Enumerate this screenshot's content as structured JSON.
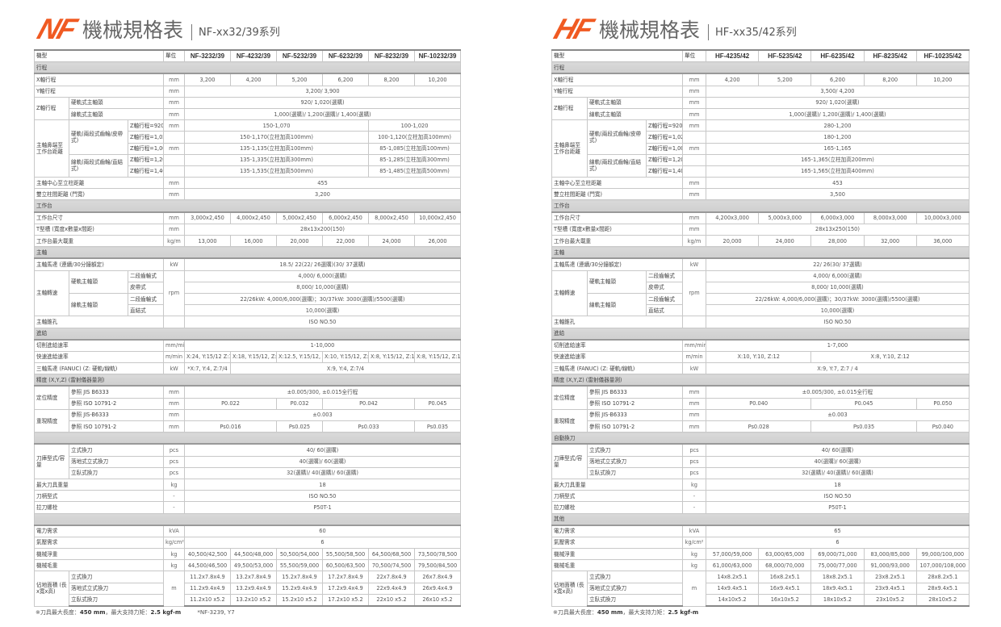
{
  "nf": {
    "logo": {
      "text": "NF",
      "color": "#f05a22"
    },
    "title": "機械規格表",
    "subtitle": "NF-xx32/39系列",
    "header": {
      "model": "機型",
      "unit": "單位",
      "models": [
        "NF-3232/39",
        "NF-4232/39",
        "NF-5232/39",
        "NF-6232/39",
        "NF-8232/39",
        "NF-10232/39"
      ]
    },
    "rows": [
      {
        "section": "行程"
      },
      {
        "label": "X軸行程",
        "unit": "mm",
        "values": [
          "3,200",
          "4,200",
          "5,200",
          "6,200",
          "8,200",
          "10,200"
        ]
      },
      {
        "label": "Y軸行程",
        "unit": "mm",
        "values": [
          "3,200/ 3,900"
        ]
      },
      {
        "group": "Z軸行程",
        "items": [
          {
            "label": "硬軌式主軸頭",
            "unit": "mm",
            "values": [
              "920/ 1,020(選購)"
            ]
          },
          {
            "label": "線軌式主軸頭",
            "unit": "mm",
            "values": [
              "1,000(選購)/ 1,200(選購)/ 1,400(選購)"
            ]
          }
        ]
      },
      {
        "group": "主軸鼻端至工作台距離",
        "items": [
          {
            "sub": "硬軌(兩段式齒輪/皮帶式)",
            "items": [
              {
                "label": "Z軸行程=920",
                "unit": "mm",
                "values": [
                  "150-1,070",
                  "100-1,020"
                ]
              },
              {
                "label": "Z軸行程=1,020",
                "unit": "",
                "values": [
                  "150-1,170(立柱加高100mm)",
                  "100-1,120(立柱加高100mm)"
                ]
              },
              {
                "label": "Z軸行程=1,000",
                "unit": "mm",
                "values": [
                  "135-1,135(立柱加高100mm)",
                  "85-1,085(立柱加高100mm)"
                ]
              }
            ]
          },
          {
            "sub": "線軌(兩段式齒輪/直結式)",
            "items": [
              {
                "label": "Z軸行程=1,200",
                "unit": "",
                "values": [
                  "135-1,335(立柱加高300mm)",
                  "85-1,285(立柱加高300mm)"
                ]
              },
              {
                "label": "Z軸行程=1,400",
                "unit": "",
                "values": [
                  "135-1,535(立柱加高500mm)",
                  "85-1,485(立柱加高500mm)"
                ]
              }
            ]
          }
        ]
      },
      {
        "label": "主軸中心至立柱距離",
        "unit": "mm",
        "values": [
          "455"
        ]
      },
      {
        "label": "雙立柱間距離 (門寬)",
        "unit": "mm",
        "values": [
          "3,200"
        ]
      },
      {
        "section": "工作台"
      },
      {
        "label": "工作台尺寸",
        "unit": "mm",
        "values": [
          "3,000x2,450",
          "4,000x2,450",
          "5,000x2,450",
          "6,000x2,450",
          "8,000x2,450",
          "10,000x2,450"
        ]
      },
      {
        "label": "T型槽 (寬度x數量x間距)",
        "unit": "mm",
        "values": [
          "28x13x200(150)"
        ]
      },
      {
        "label": "工作台最大載重",
        "unit": "kg/m",
        "values": [
          "13,000",
          "16,000",
          "20,000",
          "22,000",
          "24,000",
          "26,000"
        ]
      },
      {
        "section": "主軸"
      },
      {
        "label": "主軸馬達 (連續/30分鐘額定)",
        "unit": "kW",
        "values": [
          "18.5/ 22(22/ 26選購)(30/ 37選購)"
        ]
      },
      {
        "group": "主軸轉速",
        "unit": "rpm",
        "items": [
          {
            "sub": "硬軌主軸頭",
            "items": [
              {
                "label": "二段齒輪式",
                "values": [
                  "4,000/ 6,000(選購)"
                ]
              },
              {
                "label": "皮帶式",
                "values": [
                  "8,000/ 10,000(選購)"
                ]
              }
            ]
          },
          {
            "sub": "線軌主軸頭",
            "items": [
              {
                "label": "二段齒輪式",
                "values": [
                  "22/26kW: 4,000/6,000(選購)；30/37kW: 3000(選購)/5500(選購)"
                ]
              },
              {
                "label": "直結式",
                "values": [
                  "10,000(選購)"
                ]
              }
            ]
          }
        ]
      },
      {
        "label": "主軸錐孔",
        "unit": "",
        "values": [
          "ISO NO.50"
        ]
      },
      {
        "section": "進給"
      },
      {
        "label": "切削進給速率",
        "unit": "mm/min",
        "values": [
          "1-10,000"
        ]
      },
      {
        "label": "快速進給速率",
        "unit": "m/min",
        "values": [
          "X:24, Y:15/12 Z:15",
          "X:18, Y:15/12, Z:15",
          "X:12.5, Y:15/12, Z:15",
          "X:10, Y:15/12, Z:15",
          "X:8, Y:15/12, Z:15",
          "X:8, Y:15/12, Z:15"
        ]
      },
      {
        "label": "三軸馬達 (FANUC) (Z: 硬軌/線軌)",
        "unit": "kW",
        "values": [
          "*X:7, Y:4, Z:7/4",
          "X:9, Y:4, Z:7/4"
        ]
      },
      {
        "section": "精度 (X,Y,Z) (雷射儀器量測)"
      },
      {
        "group": "定位精度",
        "items": [
          {
            "label": "參照  JIS B6333",
            "unit": "mm",
            "values": [
              "±0.005/300, ±0.015全行程"
            ]
          },
          {
            "label": "參照  ISO 10791-2",
            "unit": "mm",
            "values": [
              "P0.022",
              "P0.032",
              "P0.042",
              "P0.045"
            ]
          }
        ]
      },
      {
        "group": "重現精度",
        "items": [
          {
            "label": "參照  JIS-B6333",
            "unit": "mm",
            "values": [
              "±0.003"
            ]
          },
          {
            "label": "參照  ISO 10791-2",
            "unit": "mm",
            "values": [
              "Ps0.016",
              "Ps0.025",
              "Ps0.033",
              "Ps0.035"
            ]
          }
        ]
      },
      {
        "section": ""
      },
      {
        "group": "刀庫型式/容量",
        "items": [
          {
            "label": "立式換刀",
            "unit": "pcs",
            "values": [
              "40/ 60(選購)"
            ]
          },
          {
            "label": "落地式立式換刀",
            "unit": "pcs",
            "values": [
              "40(選購)/ 60(選購)"
            ]
          },
          {
            "label": "立臥式換刀",
            "unit": "pcs",
            "values": [
              "32(選購)/ 40(選購)/ 60(選購)"
            ]
          }
        ]
      },
      {
        "label": "最大刀具重量",
        "unit": "kg",
        "values": [
          "18"
        ]
      },
      {
        "label": "刀柄型式",
        "unit": "-",
        "values": [
          "ISO NO.50"
        ]
      },
      {
        "label": "拉刀螺栓",
        "unit": "-",
        "values": [
          "P50T-1"
        ]
      },
      {
        "section": ""
      },
      {
        "label": "電力需求",
        "unit": "kVA",
        "values": [
          "60"
        ]
      },
      {
        "label": "氣壓需求",
        "unit": "kg/cm²",
        "values": [
          "6"
        ]
      },
      {
        "label": "機械淨重",
        "unit": "kg",
        "values": [
          "40,500/42,500",
          "44,500/48,000",
          "50,500/54,000",
          "55,500/58,500",
          "64,500/68,500",
          "73,500/78,500"
        ]
      },
      {
        "label": "機械毛重",
        "unit": "kg",
        "values": [
          "44,500/46,500",
          "49,500/53,000",
          "55,500/59,000",
          "60,500/63,500",
          "70,500/74,500",
          "79,500/84,500"
        ]
      },
      {
        "group": "佔地面積 (長x寬x高)",
        "unit": "m",
        "items": [
          {
            "label": "立式換刀",
            "values": [
              "11.2x7.8x4.9",
              "13.2x7.8x4.9",
              "15.2x7.8x4.9",
              "17.2x7.8x4.9",
              "22x7.8x4.9",
              "26x7.8x4.9"
            ]
          },
          {
            "label": "落地式立式換刀",
            "values": [
              "11.2x9.4x4.9",
              "13.2x9.4x4.9",
              "15.2x9.4x4.9",
              "17.2x9.4x4.9",
              "22x9.4x4.9",
              "26x9.4x4.9"
            ]
          },
          {
            "label": "立臥式換刀",
            "values": [
              "11.2x10 x5.2",
              "13.2x10 x5.2",
              "15.2x10 x5.2",
              "17.2x10 x5.2",
              "22x10 x5.2",
              "26x10 x5.2"
            ]
          }
        ]
      }
    ],
    "footer": {
      "p1": "※刀具最大長度：",
      "len": "450 mm",
      "p2": "，最大支持力矩：",
      "torque": "2.5 kgf-m",
      "note": "*NF-3239, Y7"
    }
  },
  "hf": {
    "logo": {
      "text": "HF",
      "color": "#f05a22"
    },
    "title": "機械規格表",
    "subtitle": "HF-xx35/42系列",
    "header": {
      "model": "機型",
      "unit": "單位",
      "models": [
        "HF-4235/42",
        "HF-5235/42",
        "HF-6235/42",
        "HF-8235/42",
        "HF-10235/42"
      ]
    },
    "rows": [
      {
        "section": "行程"
      },
      {
        "label": "X軸行程",
        "unit": "mm",
        "values": [
          "4,200",
          "5,200",
          "6,200",
          "8,200",
          "10,200"
        ]
      },
      {
        "label": "Y軸行程",
        "unit": "mm",
        "values": [
          "3,500/ 4,200"
        ]
      },
      {
        "group": "Z軸行程",
        "items": [
          {
            "label": "硬軌式主軸頭",
            "unit": "mm",
            "values": [
              "920/ 1,020(選購)"
            ]
          },
          {
            "label": "線軌式主軸頭",
            "unit": "mm",
            "values": [
              "1,000(選購)/ 1,200(選購)/ 1,400(選購)"
            ]
          }
        ]
      },
      {
        "group": "主軸鼻端至工作台距離",
        "items": [
          {
            "sub": "硬軌(兩段式齒輪/皮帶式)",
            "items": [
              {
                "label": "Z軸行程=920",
                "unit": "mm",
                "values": [
                  "280-1,200"
                ]
              },
              {
                "label": "Z軸行程=1,020",
                "unit": "",
                "values": [
                  "180-1,200"
                ]
              },
              {
                "label": "Z軸行程=1,000",
                "unit": "mm",
                "values": [
                  "165-1,165"
                ]
              }
            ]
          },
          {
            "sub": "線軌(兩段式齒輪/直結式)",
            "items": [
              {
                "label": "Z軸行程=1,200",
                "unit": "",
                "values": [
                  "165-1,365(立柱加高200mm)"
                ]
              },
              {
                "label": "Z軸行程=1,400",
                "unit": "",
                "values": [
                  "165-1,565(立柱加高400mm)"
                ]
              }
            ]
          }
        ]
      },
      {
        "label": "主軸中心至立柱距離",
        "unit": "mm",
        "values": [
          "453"
        ]
      },
      {
        "label": "雙立柱間距離 (門寬)",
        "unit": "mm",
        "values": [
          "3,500"
        ]
      },
      {
        "section": "工作台"
      },
      {
        "label": "工作台尺寸",
        "unit": "mm",
        "values": [
          "4,200x3,000",
          "5,000x3,000",
          "6,000x3,000",
          "8,000x3,000",
          "10,000x3,000"
        ]
      },
      {
        "label": "T型槽 (寬度x數量x間距)",
        "unit": "mm",
        "values": [
          "28x13x250(150)"
        ]
      },
      {
        "label": "工作台最大載重",
        "unit": "kg/m",
        "values": [
          "20,000",
          "24,000",
          "28,000",
          "32,000",
          "36,000"
        ]
      },
      {
        "section": "主軸"
      },
      {
        "label": "主軸馬達 (連續/30分鐘額定)",
        "unit": "kW",
        "values": [
          "22/ 26(30/ 37選購)"
        ]
      },
      {
        "group": "主軸轉速",
        "unit": "rpm",
        "items": [
          {
            "sub": "硬軌主軸頭",
            "items": [
              {
                "label": "二段齒輪式",
                "values": [
                  "4,000/ 6,000(選購)"
                ]
              },
              {
                "label": "皮帶式",
                "values": [
                  "8,000/ 10,000(選購)"
                ]
              }
            ]
          },
          {
            "sub": "線軌主軸頭",
            "items": [
              {
                "label": "二段齒輪式",
                "values": [
                  "22/26kW: 4,000/6,000(選購)；30/37kW: 3000(選購)/5500(選購)"
                ]
              },
              {
                "label": "直結式",
                "values": [
                  "10,000(選購)"
                ]
              }
            ]
          }
        ]
      },
      {
        "label": "主軸錐孔",
        "unit": "",
        "values": [
          "ISO NO.50"
        ]
      },
      {
        "section": "進給"
      },
      {
        "label": "切削進給速率",
        "unit": "mm/min",
        "values": [
          "1-7,000"
        ]
      },
      {
        "label": "快速進給速率",
        "unit": "m/min",
        "values": [
          "X:10, Y:10, Z:12",
          "X:8, Y:10, Z:12"
        ]
      },
      {
        "label": "三軸馬達 (FANUC) (Z: 硬軌/線軌)",
        "unit": "kW",
        "values": [
          "X:9, Y:7, Z:7 / 4"
        ]
      },
      {
        "section": "精度 (X,Y,Z) (雷射儀器量測)"
      },
      {
        "group": "定位精度",
        "items": [
          {
            "label": "參照  JIS B6333",
            "unit": "mm",
            "values": [
              "±0.005/300, ±0.015全行程"
            ]
          },
          {
            "label": "參照  ISO 10791-2",
            "unit": "mm",
            "values": [
              "P0.040",
              "P0.045",
              "P0.050"
            ]
          }
        ]
      },
      {
        "group": "重現精度",
        "items": [
          {
            "label": "參照  JIS-B6333",
            "unit": "mm",
            "values": [
              "±0.003"
            ]
          },
          {
            "label": "參照  ISO 10791-2",
            "unit": "mm",
            "values": [
              "Ps0.028",
              "Ps0.035",
              "Ps0.040"
            ]
          }
        ]
      },
      {
        "section": "自動換刀"
      },
      {
        "group": "刀庫型式/容量",
        "items": [
          {
            "label": "立式換刀",
            "unit": "pcs",
            "values": [
              "40/ 60(選購)"
            ]
          },
          {
            "label": "落地式立式換刀",
            "unit": "pcs",
            "values": [
              "40(選購)/ 60(選購)"
            ]
          },
          {
            "label": "立臥式換刀",
            "unit": "pcs",
            "values": [
              "32(選購)/ 40(選購)/ 60(選購)"
            ]
          }
        ]
      },
      {
        "label": "最大刀具重量",
        "unit": "kg",
        "values": [
          "18"
        ]
      },
      {
        "label": "刀柄型式",
        "unit": "-",
        "values": [
          "ISO NO.50"
        ]
      },
      {
        "label": "拉刀螺栓",
        "unit": "-",
        "values": [
          "P50T-1"
        ]
      },
      {
        "section": "其他"
      },
      {
        "label": "電力需求",
        "unit": "kVA",
        "values": [
          "65"
        ]
      },
      {
        "label": "氣壓需求",
        "unit": "kg/cm²",
        "values": [
          "6"
        ]
      },
      {
        "label": "機械淨重",
        "unit": "kg",
        "values": [
          "57,000/59,000",
          "63,000/65,000",
          "69,000/71,000",
          "83,000/85,000",
          "99,000/100,000"
        ]
      },
      {
        "label": "機械毛重",
        "unit": "kg",
        "values": [
          "61,000/63,000",
          "68,000/70,000",
          "75,000/77,000",
          "91,000/93,000",
          "107,000/108,000"
        ]
      },
      {
        "group": "佔地面積 (長x寬x高)",
        "unit": "m",
        "items": [
          {
            "label": "立式換刀",
            "values": [
              "14x8.2x5.1",
              "16x8.2x5.1",
              "18x8.2x5.1",
              "23x8.2x5.1",
              "28x8.2x5.1"
            ]
          },
          {
            "label": "落地式立式換刀",
            "values": [
              "14x9.4x5.1",
              "16x9.4x5.1",
              "18x9.4x5.1",
              "23x9.4x5.1",
              "28x9.4x5.1"
            ]
          },
          {
            "label": "立臥式換刀",
            "values": [
              "14x10x5.2",
              "16x10x5.2",
              "18x10x5.2",
              "23x10x5.2",
              "28x10x5.2"
            ]
          }
        ]
      }
    ],
    "footer": {
      "p1": "※刀具最大長度：",
      "len": "450 mm",
      "p2": "，最大支持力矩：",
      "torque": "2.5 kgf-m"
    }
  }
}
